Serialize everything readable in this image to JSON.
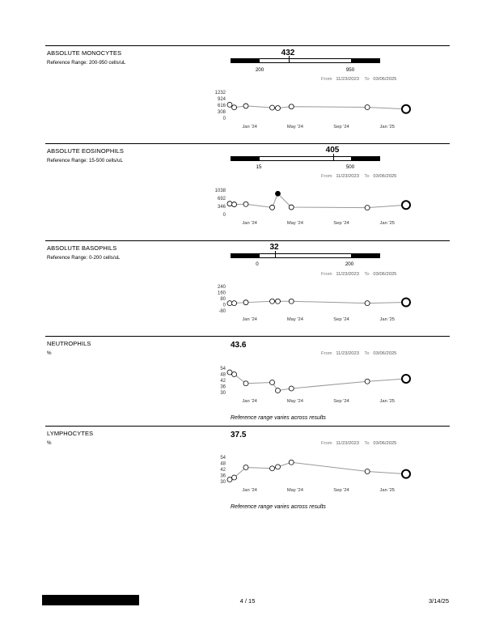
{
  "range_dates": {
    "from_label": "From",
    "from_date": "11/23/2023",
    "to_label": "To",
    "to_date": "03/06/2025"
  },
  "x_ticks": [
    "Jan '24",
    "May '24",
    "Sep '24",
    "Jan '25"
  ],
  "tests": [
    {
      "title": "ABSOLUTE MONOCYTES",
      "subtitle": "Reference Range: 200-950 cells/uL",
      "value": "432",
      "ref_low": "200",
      "ref_high": "950",
      "y_ticks": [
        "1232",
        "924",
        "616",
        "308",
        "0"
      ],
      "chart_data": {
        "type": "line",
        "x": [
          "11/23/2023",
          "12/05/2023",
          "01/05/2024",
          "03/15/2024",
          "03/30/2024",
          "05/05/2024",
          "11/23/2024",
          "03/06/2025"
        ],
        "y": [
          640,
          510,
          580,
          500,
          480,
          550,
          520,
          432
        ],
        "ylim": [
          0,
          1232
        ],
        "flagged": [
          false,
          false,
          false,
          false,
          false,
          false,
          false,
          false
        ]
      }
    },
    {
      "title": "ABSOLUTE EOSINOPHILS",
      "subtitle": "Reference Range: 15-500 cells/uL",
      "value": "405",
      "ref_low": "15",
      "ref_high": "500",
      "y_ticks": [
        "1038",
        "692",
        "346",
        "0"
      ],
      "chart_data": {
        "type": "line",
        "x": [
          "11/23/2023",
          "12/05/2023",
          "01/05/2024",
          "03/15/2024",
          "03/30/2024",
          "05/05/2024",
          "11/23/2024",
          "03/06/2025"
        ],
        "y": [
          460,
          430,
          440,
          300,
          890,
          310,
          290,
          405
        ],
        "ylim": [
          0,
          1038
        ],
        "flagged": [
          false,
          false,
          false,
          false,
          true,
          false,
          false,
          false
        ]
      }
    },
    {
      "title": "ABSOLUTE BASOPHILS",
      "subtitle": "Reference Range: 0-200 cells/uL",
      "value": "32",
      "ref_low": "0",
      "ref_high": "200",
      "y_ticks": [
        "240",
        "160",
        "80",
        "0",
        "-80"
      ],
      "chart_data": {
        "type": "line",
        "x": [
          "11/23/2023",
          "12/05/2023",
          "01/05/2024",
          "03/15/2024",
          "03/30/2024",
          "05/05/2024",
          "11/23/2024",
          "03/06/2025"
        ],
        "y": [
          20,
          20,
          30,
          45,
          45,
          45,
          20,
          32
        ],
        "ylim": [
          -80,
          240
        ],
        "flagged": [
          false,
          false,
          false,
          false,
          false,
          false,
          false,
          false
        ]
      }
    },
    {
      "title": "NEUTROPHILS",
      "subtitle": "%",
      "value": "43.6",
      "y_ticks": [
        "54",
        "48",
        "42",
        "36",
        "30"
      ],
      "note": "Reference range varies across results",
      "chart_data": {
        "type": "line",
        "x": [
          "11/23/2023",
          "12/05/2023",
          "01/05/2024",
          "03/15/2024",
          "03/30/2024",
          "05/05/2024",
          "11/23/2024",
          "03/06/2025"
        ],
        "y": [
          50,
          48,
          39,
          40,
          32,
          34,
          41,
          43.6
        ],
        "ylim": [
          30,
          54
        ],
        "flagged": [
          false,
          false,
          false,
          false,
          false,
          false,
          false,
          false
        ]
      }
    },
    {
      "title": "LYMPHOCYTES",
      "subtitle": "%",
      "value": "37.5",
      "y_ticks": [
        "54",
        "48",
        "42",
        "36",
        "30"
      ],
      "note": "Reference range varies across results",
      "chart_data": {
        "type": "line",
        "x": [
          "11/23/2023",
          "12/05/2023",
          "01/05/2024",
          "03/15/2024",
          "03/30/2024",
          "05/05/2024",
          "11/23/2024",
          "03/06/2025"
        ],
        "y": [
          32,
          34,
          44,
          43,
          44.5,
          49,
          40,
          37.5
        ],
        "ylim": [
          30,
          54
        ],
        "flagged": [
          false,
          false,
          false,
          false,
          false,
          false,
          false,
          false
        ]
      }
    }
  ],
  "footer": {
    "page": "4 / 15",
    "date": "3/14/25"
  }
}
